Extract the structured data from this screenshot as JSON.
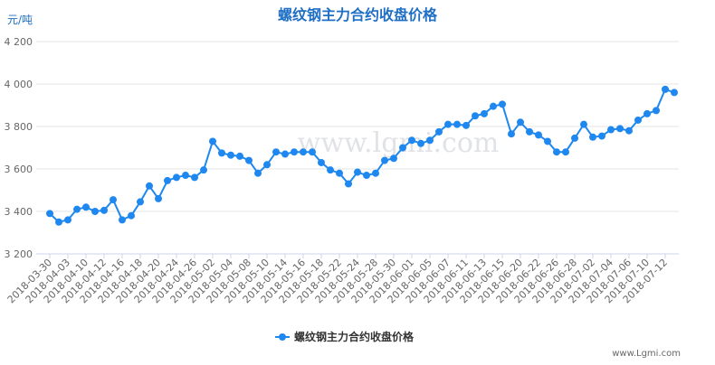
{
  "chart_data": {
    "type": "line",
    "title": "螺纹钢主力合约收盘价格",
    "y_label": "元/吨",
    "watermark": "www.lgmi.com",
    "credit": "www.Lgmi.com",
    "categories": [
      "2018-03-30",
      null,
      "2018-04-03",
      null,
      "2018-04-10",
      null,
      "2018-04-12",
      null,
      "2018-04-16",
      null,
      "2018-04-18",
      null,
      "2018-04-20",
      null,
      "2018-04-24",
      null,
      "2018-04-26",
      null,
      "2018-05-02",
      null,
      "2018-05-04",
      null,
      "2018-05-08",
      null,
      "2018-05-10",
      null,
      "2018-05-14",
      null,
      "2018-05-16",
      null,
      "2018-05-18",
      null,
      "2018-05-22",
      null,
      "2018-05-24",
      null,
      "2018-05-28",
      null,
      "2018-05-30",
      null,
      "2018-06-01",
      null,
      "2018-06-05",
      null,
      "2018-06-07",
      null,
      "2018-06-11",
      null,
      "2018-06-13",
      null,
      "2018-06-15",
      null,
      "2018-06-20",
      null,
      "2018-06-22",
      null,
      "2018-06-26",
      null,
      "2018-06-28",
      null,
      "2018-07-02",
      null,
      "2018-07-04",
      null,
      "2018-07-06",
      null,
      "2018-07-10",
      null,
      "2018-07-12",
      null
    ],
    "series": [
      {
        "name": "螺纹钢主力合约收盘价格",
        "color": "#1e88f0",
        "values": [
          3390,
          3350,
          3360,
          3410,
          3420,
          3400,
          3405,
          3455,
          3360,
          3380,
          3445,
          3520,
          3460,
          3545,
          3560,
          3570,
          3560,
          3595,
          3730,
          3675,
          3665,
          3660,
          3640,
          3580,
          3620,
          3680,
          3670,
          3680,
          3680,
          3680,
          3630,
          3595,
          3580,
          3530,
          3585,
          3570,
          3580,
          3640,
          3650,
          3700,
          3735,
          3720,
          3735,
          3775,
          3810,
          3810,
          3805,
          3850,
          3860,
          3895,
          3905,
          3765,
          3820,
          3775,
          3760,
          3730,
          3680,
          3680,
          3745,
          3810,
          3750,
          3755,
          3785,
          3790,
          3780,
          3830,
          3860,
          3875,
          3975,
          3960
        ]
      }
    ],
    "ylim": [
      3200,
      4200
    ],
    "yticks": [
      {
        "value": 3200,
        "label": "3 200"
      },
      {
        "value": 3400,
        "label": "3 400"
      },
      {
        "value": 3600,
        "label": "3 600"
      },
      {
        "value": 3800,
        "label": "3 800"
      },
      {
        "value": 4000,
        "label": "4 000"
      },
      {
        "value": 4200,
        "label": "4 200"
      }
    ],
    "grid": true,
    "legend": "bottom"
  }
}
